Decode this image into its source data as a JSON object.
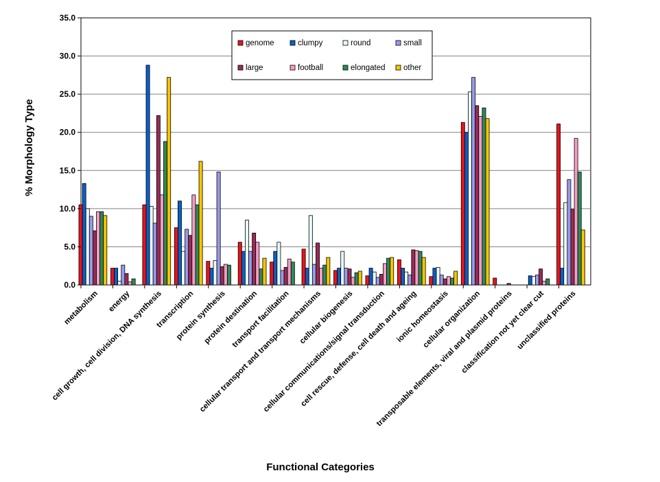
{
  "chart_data": {
    "type": "bar",
    "title": "",
    "xlabel": "Functional Categories",
    "ylabel": "% Morphology Type",
    "ylim": [
      0,
      35
    ],
    "yticks": [
      "0.0",
      "5.0",
      "10.0",
      "15.0",
      "20.0",
      "25.0",
      "30.0",
      "35.0"
    ],
    "grid": "horizontal",
    "legend_position": "top-center",
    "categories": [
      "metabolism",
      "energy",
      "cell growth, cell division, DNA synthesis",
      "transcription",
      "protein synthesis",
      "protein destination",
      "transport facilitation",
      "cellular transport and transport mechanisms",
      "cellular biogenesis",
      "cellular communications/signal transduction",
      "cell rescue, defense, cell death and ageing",
      "ionic homeostasis",
      "cellular organization",
      "transposable elements, viral and plasmid proteins",
      "classification not yet clear cut",
      "unclassified proteins"
    ],
    "series": [
      {
        "name": "genome",
        "color": "#e8141c",
        "values": [
          10.5,
          2.2,
          10.5,
          7.5,
          3.1,
          5.6,
          3.0,
          4.7,
          1.9,
          1.2,
          3.3,
          1.1,
          21.3,
          0.9,
          0.0,
          21.1
        ]
      },
      {
        "name": "clumpy",
        "color": "#0d5fc4",
        "values": [
          13.3,
          2.2,
          28.8,
          11.0,
          2.2,
          4.4,
          4.4,
          2.2,
          2.2,
          2.2,
          2.2,
          2.2,
          20.0,
          0.0,
          1.2,
          2.2
        ]
      },
      {
        "name": "round",
        "color": "#e6fafa",
        "values": [
          10.0,
          0.5,
          10.3,
          4.4,
          3.2,
          8.5,
          5.6,
          9.1,
          4.4,
          1.7,
          1.7,
          2.3,
          25.3,
          0.0,
          1.1,
          10.8
        ]
      },
      {
        "name": "small",
        "color": "#9a9ae8",
        "values": [
          9.0,
          2.6,
          8.1,
          7.3,
          14.8,
          4.4,
          1.9,
          2.7,
          2.2,
          1.0,
          1.3,
          1.3,
          27.2,
          0.0,
          1.3,
          13.8
        ]
      },
      {
        "name": "large",
        "color": "#982c56",
        "values": [
          7.1,
          1.5,
          22.2,
          6.5,
          2.4,
          6.8,
          2.3,
          5.5,
          2.1,
          1.4,
          4.6,
          0.8,
          23.5,
          0.2,
          2.1,
          9.9
        ]
      },
      {
        "name": "football",
        "color": "#f49cc4",
        "values": [
          9.6,
          0.4,
          11.8,
          11.8,
          2.7,
          5.6,
          3.4,
          2.2,
          1.0,
          2.8,
          4.5,
          1.1,
          22.1,
          0.0,
          0.5,
          19.2
        ]
      },
      {
        "name": "elongated",
        "color": "#2e8a58",
        "values": [
          9.6,
          0.8,
          18.8,
          10.5,
          2.6,
          2.1,
          3.0,
          2.6,
          1.6,
          3.5,
          4.4,
          0.9,
          23.2,
          0.0,
          0.8,
          14.8
        ]
      },
      {
        "name": "other",
        "color": "#f6c400",
        "values": [
          9.1,
          0.0,
          27.2,
          16.2,
          0.0,
          3.5,
          0.0,
          3.6,
          1.8,
          3.6,
          3.6,
          1.8,
          21.8,
          0.0,
          0.0,
          7.2
        ]
      }
    ]
  }
}
